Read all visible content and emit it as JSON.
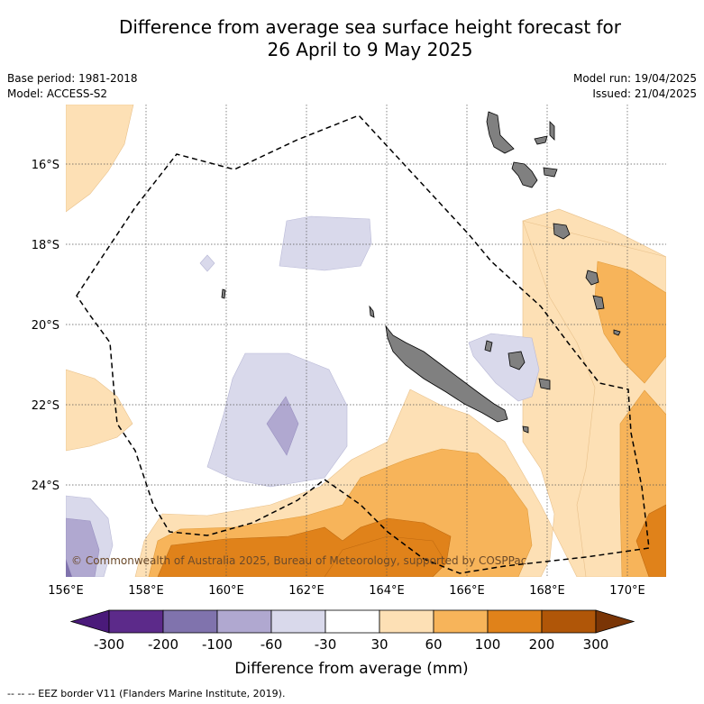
{
  "title": {
    "line1": "Difference from average sea surface height forecast for",
    "line2": "26 April to 9 May 2025"
  },
  "meta_left": {
    "base_period": "Base period: 1981-2018",
    "model": "Model: ACCESS-S2"
  },
  "meta_right": {
    "model_run": "Model run: 19/04/2025",
    "issued": "Issued: 21/04/2025"
  },
  "map": {
    "lon_range": [
      156.0,
      171.0
    ],
    "lat_range": [
      -26.3,
      -14.6
    ],
    "lon_ticks": [
      "156°E",
      "158°E",
      "160°E",
      "162°E",
      "164°E",
      "166°E",
      "168°E",
      "170°E"
    ],
    "lat_ticks": [
      "16°S",
      "18°S",
      "20°S",
      "22°S",
      "24°S"
    ],
    "copyright": "© Commonwealth of Australia 2025, Bureau of Meteorology, supported by COSPPac",
    "gridlines": true
  },
  "colorbar": {
    "ticks": [
      "-300",
      "-200",
      "-100",
      "-60",
      "-30",
      "30",
      "60",
      "100",
      "200",
      "300"
    ],
    "colors": [
      "#4a1a7a",
      "#5c2a8a",
      "#8073ad",
      "#b0a8d0",
      "#d9d9eb",
      "#ffffff",
      "#fde0b5",
      "#f7b45a",
      "#e0821a",
      "#b05608",
      "#7a3506"
    ],
    "label": "Difference from average (mm)"
  },
  "footer": {
    "legend": "--  --  -- EEZ border V11 (Flanders Marine Institute, 2019)."
  }
}
